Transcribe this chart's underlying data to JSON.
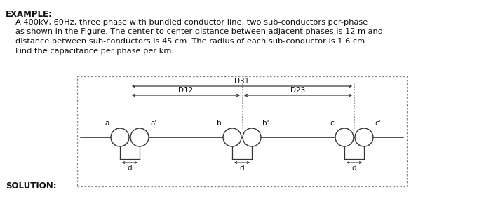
{
  "title": "EXAMPLE:",
  "body_line1": "A 400kV, 60Hz, three phase with bundled conductor line, two sub-conductors per-phase",
  "body_line2": "as shown in the Figure. The center to center distance between adjacent phases is 12 m and",
  "body_line3": "distance between sub-conductors is 45 cm. The radius of each sub-conductor is 1.6 cm.",
  "body_line4": "Find the capacitance per phase per km.",
  "solution_label": "SOLUTION:",
  "background": "#ffffff",
  "text_color": "#111111",
  "box_border_color": "#888888",
  "conductor_color": "#333333",
  "line_color": "#333333",
  "arrow_color": "#222222",
  "label_d": "d",
  "label_D12": "D12",
  "label_D23": "D23",
  "label_D31": "D31"
}
